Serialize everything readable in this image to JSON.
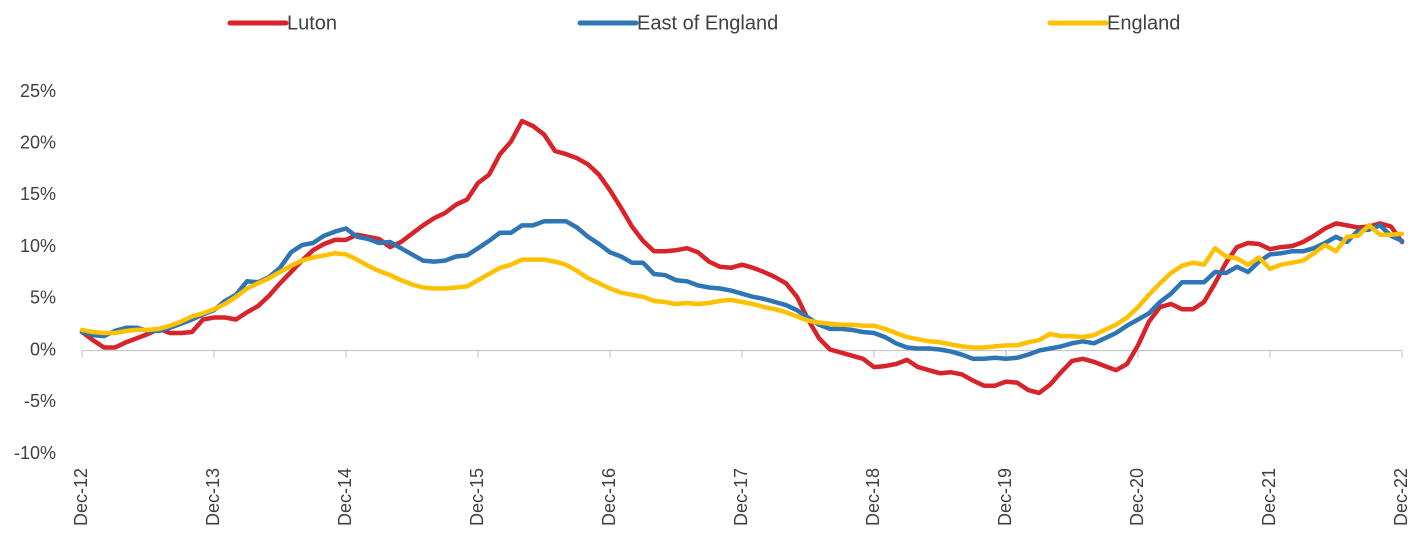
{
  "chart_data": {
    "type": "line",
    "categories": [
      "Dec-12",
      null,
      null,
      null,
      null,
      null,
      null,
      null,
      null,
      null,
      null,
      null,
      "Dec-13",
      null,
      null,
      null,
      null,
      null,
      null,
      null,
      null,
      null,
      null,
      null,
      "Dec-14",
      null,
      null,
      null,
      null,
      null,
      null,
      null,
      null,
      null,
      null,
      null,
      "Dec-15",
      null,
      null,
      null,
      null,
      null,
      null,
      null,
      null,
      null,
      null,
      null,
      "Dec-16",
      null,
      null,
      null,
      null,
      null,
      null,
      null,
      null,
      null,
      null,
      null,
      "Dec-17",
      null,
      null,
      null,
      null,
      null,
      null,
      null,
      null,
      null,
      null,
      null,
      "Dec-18",
      null,
      null,
      null,
      null,
      null,
      null,
      null,
      null,
      null,
      null,
      null,
      "Dec-19",
      null,
      null,
      null,
      null,
      null,
      null,
      null,
      null,
      null,
      null,
      null,
      "Dec-20",
      null,
      null,
      null,
      null,
      null,
      null,
      null,
      null,
      null,
      null,
      null,
      "Dec-21",
      null,
      null,
      null,
      null,
      null,
      null,
      null,
      null,
      null,
      null,
      null,
      "Dec-22"
    ],
    "series": [
      {
        "name": "Luton",
        "color": "#d9232a",
        "values": [
          1.8,
          1.0,
          0.3,
          0.3,
          0.8,
          1.2,
          1.6,
          2.1,
          1.7,
          1.7,
          1.8,
          3.0,
          3.2,
          3.2,
          3.0,
          3.7,
          4.3,
          5.3,
          6.5,
          7.6,
          8.7,
          9.7,
          10.3,
          10.7,
          10.7,
          11.2,
          11.0,
          10.8,
          10.0,
          10.5,
          11.3,
          12.1,
          12.8,
          13.3,
          14.1,
          14.6,
          16.2,
          17.0,
          19.0,
          20.2,
          22.2,
          21.7,
          20.9,
          19.3,
          19.0,
          18.6,
          18.0,
          17.0,
          15.5,
          13.8,
          12.0,
          10.6,
          9.6,
          9.6,
          9.7,
          9.9,
          9.5,
          8.6,
          8.1,
          8.0,
          8.3,
          8.0,
          7.6,
          7.1,
          6.5,
          5.2,
          3.0,
          1.2,
          0.1,
          -0.2,
          -0.5,
          -0.8,
          -1.6,
          -1.5,
          -1.3,
          -0.9,
          -1.6,
          -1.9,
          -2.2,
          -2.1,
          -2.3,
          -2.9,
          -3.4,
          -3.4,
          -3.0,
          -3.1,
          -3.8,
          -4.1,
          -3.3,
          -2.1,
          -1.0,
          -0.8,
          -1.1,
          -1.5,
          -1.9,
          -1.3,
          0.5,
          2.8,
          4.2,
          4.5,
          4.0,
          4.0,
          4.7,
          6.5,
          8.5,
          10.0,
          10.4,
          10.3,
          9.8,
          10.0,
          10.1,
          10.5,
          11.1,
          11.8,
          12.3,
          12.1,
          11.9,
          12.0,
          12.3,
          12.0,
          10.5
        ]
      },
      {
        "name": "East of England",
        "color": "#2e75b6",
        "values": [
          1.8,
          1.5,
          1.4,
          1.9,
          2.2,
          2.2,
          1.9,
          1.9,
          2.2,
          2.6,
          3.0,
          3.5,
          3.9,
          4.8,
          5.4,
          6.7,
          6.6,
          7.1,
          8.0,
          9.5,
          10.2,
          10.4,
          11.1,
          11.5,
          11.8,
          11.0,
          10.8,
          10.4,
          10.5,
          9.9,
          9.3,
          8.7,
          8.6,
          8.7,
          9.1,
          9.2,
          9.9,
          10.6,
          11.4,
          11.4,
          12.1,
          12.1,
          12.5,
          12.5,
          12.5,
          11.9,
          11.0,
          10.3,
          9.5,
          9.1,
          8.5,
          8.5,
          7.4,
          7.3,
          6.8,
          6.7,
          6.3,
          6.1,
          6.0,
          5.8,
          5.5,
          5.2,
          5.0,
          4.7,
          4.4,
          3.9,
          3.2,
          2.5,
          2.1,
          2.1,
          2.0,
          1.8,
          1.7,
          1.3,
          0.7,
          0.3,
          0.2,
          0.2,
          0.1,
          -0.1,
          -0.4,
          -0.8,
          -0.8,
          -0.7,
          -0.8,
          -0.7,
          -0.4,
          0.0,
          0.2,
          0.4,
          0.7,
          0.9,
          0.7,
          1.2,
          1.7,
          2.4,
          3.0,
          3.6,
          4.7,
          5.5,
          6.6,
          6.6,
          6.6,
          7.6,
          7.5,
          8.1,
          7.6,
          8.6,
          9.3,
          9.4,
          9.6,
          9.6,
          9.9,
          10.4,
          11.0,
          10.5,
          11.6,
          11.7,
          12.1,
          11.1,
          10.6
        ]
      },
      {
        "name": "England",
        "color": "#ffc000",
        "values": [
          2.0,
          1.8,
          1.7,
          1.7,
          1.9,
          2.0,
          2.0,
          2.1,
          2.4,
          2.8,
          3.3,
          3.6,
          4.0,
          4.5,
          5.2,
          6.0,
          6.5,
          7.0,
          7.6,
          8.2,
          8.7,
          9.0,
          9.2,
          9.4,
          9.3,
          8.8,
          8.2,
          7.7,
          7.3,
          6.8,
          6.4,
          6.1,
          6.0,
          6.0,
          6.1,
          6.2,
          6.8,
          7.4,
          8.0,
          8.3,
          8.8,
          8.8,
          8.8,
          8.6,
          8.3,
          7.7,
          7.0,
          6.5,
          6.0,
          5.6,
          5.4,
          5.2,
          4.8,
          4.7,
          4.5,
          4.6,
          4.5,
          4.6,
          4.8,
          4.9,
          4.7,
          4.5,
          4.2,
          4.0,
          3.7,
          3.3,
          2.9,
          2.7,
          2.6,
          2.5,
          2.5,
          2.4,
          2.4,
          2.1,
          1.7,
          1.3,
          1.1,
          0.9,
          0.8,
          0.6,
          0.4,
          0.3,
          0.3,
          0.4,
          0.5,
          0.5,
          0.8,
          1.0,
          1.6,
          1.4,
          1.4,
          1.3,
          1.5,
          2.0,
          2.5,
          3.2,
          4.2,
          5.4,
          6.5,
          7.5,
          8.2,
          8.5,
          8.3,
          9.9,
          9.1,
          8.9,
          8.3,
          9.0,
          7.9,
          8.3,
          8.5,
          8.7,
          9.4,
          10.2,
          9.6,
          11.0,
          11.1,
          12.1,
          11.2,
          11.2,
          11.3
        ]
      }
    ],
    "ylim": [
      -10,
      25
    ],
    "yticks": [
      {
        "value": -10,
        "label": "-10%"
      },
      {
        "value": -5,
        "label": "-5%"
      },
      {
        "value": 0,
        "label": "0%"
      },
      {
        "value": 5,
        "label": "5%"
      },
      {
        "value": 10,
        "label": "10%"
      },
      {
        "value": 15,
        "label": "15%"
      },
      {
        "value": 20,
        "label": "20%"
      },
      {
        "value": 25,
        "label": "25%"
      }
    ],
    "grid": false,
    "legend": "top"
  }
}
